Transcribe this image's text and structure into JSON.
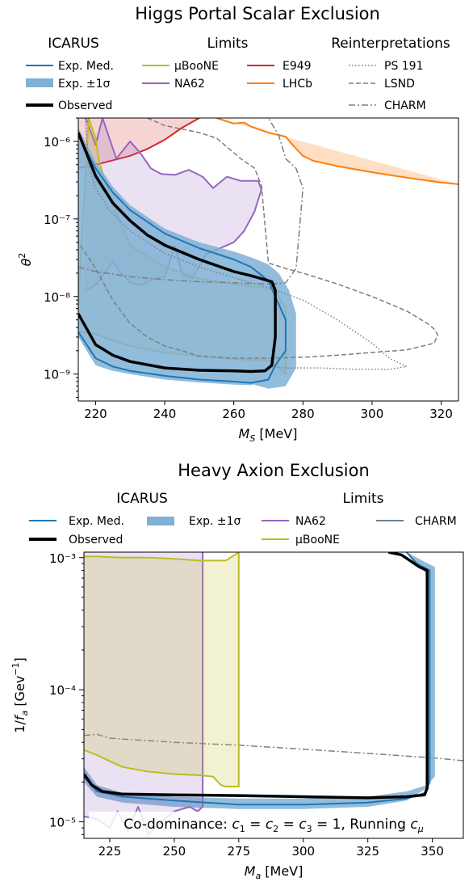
{
  "colors": {
    "icarus_median": "#1f77b4",
    "icarus_band": "#7fb0d6",
    "observed": "#000000",
    "microboone": "#bcbd22",
    "na62": "#9467bd",
    "e949": "#d62728",
    "lhcb": "#ff7f0e",
    "reinterpretation": "#7f7f7f",
    "charm_axion": "#708090"
  },
  "chart_data": [
    {
      "type": "line",
      "title": "Higgs Portal Scalar Exclusion",
      "xlabel": "M_S [MeV]",
      "ylabel": "θ²",
      "xlim": [
        215,
        325
      ],
      "ylim": [
        4.5e-10,
        2e-06
      ],
      "yscale": "log",
      "grid": false,
      "legend_placement": "top (above axes)",
      "legend_groups": [
        {
          "title": "ICARUS",
          "entries": [
            "Exp. Med.",
            "Exp. ±1σ",
            "Observed"
          ]
        },
        {
          "title": "Limits",
          "entries": [
            "μBooNE",
            "NA62",
            "E949",
            "LHCb"
          ]
        },
        {
          "title": "Reinterpretations",
          "entries": [
            "PS 191",
            "LSND",
            "CHARM"
          ]
        }
      ],
      "xticks": [
        "220",
        "240",
        "260",
        "280",
        "300",
        "320"
      ],
      "yticks": [
        "10⁻⁹",
        "10⁻⁸",
        "10⁻⁷",
        "10⁻⁶"
      ],
      "series": [
        {
          "name": "Exp. Med.",
          "style": "line",
          "x": [
            215,
            220,
            225,
            230,
            240,
            250,
            260,
            265,
            270,
            272,
            275,
            275,
            272,
            270,
            265,
            260,
            250,
            240,
            230,
            225,
            220,
            215
          ],
          "y": [
            3.5e-09,
            1.6e-09,
            1.25e-09,
            1.1e-09,
            9.5e-10,
            8.5e-10,
            8e-10,
            7.7e-10,
            8.5e-10,
            1.3e-09,
            2e-09,
            5e-09,
            1e-08,
            1.6e-08,
            2.4e-08,
            3e-08,
            4.2e-08,
            6.5e-08,
            1.3e-07,
            2.2e-07,
            4.5e-07,
            1.2e-06
          ]
        },
        {
          "name": "Exp. ±1σ",
          "style": "band",
          "x": [
            215,
            220,
            225,
            230,
            240,
            250,
            260,
            265,
            270,
            275,
            278,
            278,
            276,
            273,
            270,
            265,
            260,
            250,
            240,
            230,
            225,
            220,
            215,
            215,
            220,
            225,
            230,
            240,
            250,
            260,
            265,
            268,
            272,
            270,
            265,
            260,
            250,
            240,
            230,
            225,
            220,
            215
          ],
          "y": [
            4.5e-09,
            1.9e-09,
            1.4e-09,
            1.2e-09,
            1e-09,
            9e-10,
            8e-10,
            7.5e-10,
            6.5e-10,
            7e-10,
            1.2e-09,
            6e-09,
            1.2e-08,
            2e-08,
            2.6e-08,
            3.2e-08,
            3.8e-08,
            5e-08,
            7.5e-08,
            1.5e-07,
            2.6e-07,
            5.5e-07,
            1.5e-06,
            3e-09,
            1.3e-09,
            1.1e-09,
            1e-09,
            8.5e-10,
            7.8e-10,
            7.3e-10,
            7.2e-10,
            8e-10,
            2e-09,
            1.4e-08,
            2e-08,
            2.5e-08,
            3.5e-08,
            5.5e-08,
            1.1e-07,
            1.8e-07,
            3.6e-07,
            9e-07
          ]
        },
        {
          "name": "Observed",
          "style": "thick-line",
          "x": [
            215,
            220,
            225,
            230,
            240,
            250,
            260,
            265,
            269,
            271,
            272,
            272,
            271,
            268,
            265,
            260,
            250,
            240,
            235,
            230,
            225,
            220,
            215
          ],
          "y": [
            6e-09,
            2.4e-09,
            1.75e-09,
            1.45e-09,
            1.2e-09,
            1.12e-09,
            1.1e-09,
            1.08e-09,
            1.1e-09,
            1.3e-09,
            3e-09,
            1.2e-08,
            1.55e-08,
            1.7e-08,
            1.85e-08,
            2.1e-08,
            3e-08,
            4.6e-08,
            6.2e-08,
            9.5e-08,
            1.6e-07,
            3.6e-07,
            1.3e-06
          ]
        },
        {
          "name": "μBooNE",
          "style": "filled-outline",
          "x": [
            215,
            220,
            225,
            230,
            240,
            250,
            260,
            270,
            273,
            275,
            275,
            272,
            268,
            260,
            250,
            240,
            230,
            225,
            221,
            220,
            218,
            215
          ],
          "y": [
            3.5e-09,
            3.3e-09,
            2.7e-09,
            2.3e-09,
            1.9e-09,
            1.7e-09,
            1.55e-09,
            1.5e-09,
            1.2e-09,
            1e-09,
            7e-09,
            1.2e-08,
            1.3e-08,
            1.45e-08,
            1.7e-08,
            2.4e-08,
            4.5e-08,
            1.5e-07,
            5.5e-07,
            1.1e-06,
            2e-06,
            8e-09
          ]
        },
        {
          "name": "NA62",
          "style": "filled-outline",
          "x": [
            217,
            220,
            225,
            227,
            230,
            233,
            237,
            240,
            243,
            245,
            248,
            252,
            255,
            260,
            263,
            266,
            268,
            267,
            262,
            258,
            254,
            251,
            247,
            243,
            239,
            236,
            233,
            230,
            226,
            222,
            220,
            217
          ],
          "y": [
            1.2e-08,
            1.4e-08,
            2.8e-08,
            2.1e-08,
            1.5e-08,
            1.4e-08,
            1.7e-08,
            1.8e-08,
            4.5e-08,
            1.9e-08,
            1.7e-08,
            3.5e-08,
            4e-08,
            5e-08,
            7e-08,
            1.25e-07,
            2.4e-07,
            3.1e-07,
            3.1e-07,
            3.5e-07,
            2.5e-07,
            3.5e-07,
            4.3e-07,
            3.7e-07,
            3.8e-07,
            4.5e-07,
            7e-07,
            1e-06,
            6e-07,
            2e-06,
            9e-07,
            2.1e-06
          ]
        },
        {
          "name": "E949",
          "style": "filled-outline",
          "x": [
            215,
            220,
            225,
            230,
            235,
            240,
            245,
            250
          ],
          "y": [
            4.5e-07,
            5e-07,
            5.7e-07,
            6.5e-07,
            8e-07,
            1.05e-06,
            1.5e-06,
            2e-06
          ]
        },
        {
          "name": "LHCb",
          "style": "filled-outline",
          "x": [
            255,
            260,
            263,
            265,
            270,
            275,
            277,
            280,
            283,
            290,
            300,
            310,
            320,
            325
          ],
          "y": [
            2e-06,
            1.7e-06,
            1.75e-06,
            1.55e-06,
            1.3e-06,
            1.15e-06,
            9e-07,
            6.5e-07,
            5.6e-07,
            4.8e-07,
            4e-07,
            3.4e-07,
            2.95e-07,
            2.8e-07
          ]
        },
        {
          "name": "PS 191",
          "style": "dotted",
          "x": [
            217,
            218,
            220,
            224,
            230,
            240,
            250,
            260,
            270,
            280,
            290,
            300,
            305,
            310,
            305,
            295,
            285,
            275,
            270
          ],
          "y": [
            2e-06,
            5e-07,
            2.5e-07,
            1.3e-07,
            7e-08,
            3.6e-08,
            2.4e-08,
            1.75e-08,
            1.3e-08,
            9e-09,
            5e-09,
            2.5e-09,
            1.6e-09,
            1.25e-09,
            1.15e-09,
            1.15e-09,
            1.2e-09,
            1.2e-09,
            1.25e-09
          ]
        },
        {
          "name": "LSND",
          "style": "dashed",
          "x": [
            235,
            240,
            250,
            255,
            262,
            266,
            268,
            270,
            275,
            280,
            290,
            300,
            310,
            316,
            318,
            319,
            318,
            310,
            300,
            290,
            280,
            270,
            260,
            250,
            245,
            240,
            235,
            230,
            225,
            220,
            215
          ],
          "y": [
            2e-06,
            1.6e-06,
            1.3e-06,
            1.1e-06,
            6e-07,
            4.5e-07,
            2.7e-07,
            2.7e-08,
            2.3e-08,
            2e-08,
            1.45e-08,
            1e-08,
            6.5e-09,
            4.5e-09,
            3.8e-09,
            3.2e-09,
            2.5e-09,
            2.05e-09,
            1.9e-09,
            1.75e-09,
            1.65e-09,
            1.6e-09,
            1.6e-09,
            1.7e-09,
            2e-09,
            2.3e-09,
            3e-09,
            4.5e-09,
            9e-09,
            2.3e-08,
            5e-08
          ]
        },
        {
          "name": "CHARM",
          "style": "dashdot",
          "x": [
            215,
            220,
            230,
            240,
            250,
            260,
            270,
            275,
            278,
            280,
            278,
            275,
            273,
            270
          ],
          "y": [
            2.4e-08,
            2.1e-08,
            1.8e-08,
            1.65e-08,
            1.55e-08,
            1.5e-08,
            1.45e-08,
            1.5e-08,
            2.3e-08,
            2.5e-07,
            4.5e-07,
            6e-07,
            1.2e-06,
            2e-06
          ]
        }
      ]
    },
    {
      "type": "line",
      "title": "Heavy Axion Exclusion",
      "xlabel": "M_a [MeV]",
      "ylabel": "1/f_a [Gev⁻¹]",
      "xlim": [
        215,
        362
      ],
      "ylim": [
        7.5e-06,
        0.0011
      ],
      "yscale": "log",
      "grid": false,
      "legend_placement": "top (above axes)",
      "legend_groups": [
        {
          "title": "ICARUS",
          "entries": [
            "Exp. Med.",
            "Exp. ±1σ",
            "Observed"
          ]
        },
        {
          "title": "Limits",
          "entries": [
            "NA62",
            "CHARM",
            "μBooNE"
          ]
        }
      ],
      "annotation": "Co-dominance: c₁ = c₂ = c₃ = 1, Running c_μ",
      "xticks": [
        "225",
        "250",
        "275",
        "300",
        "325",
        "350"
      ],
      "yticks": [
        "10⁻⁵",
        "10⁻⁴",
        "10⁻³"
      ],
      "series": [
        {
          "name": "Exp. Med.",
          "style": "line",
          "x": [
            215,
            220,
            230,
            250,
            275,
            300,
            325,
            340,
            347,
            349,
            349,
            344,
            340
          ],
          "y": [
            2.2e-05,
            1.7e-05,
            1.55e-05,
            1.45e-05,
            1.35e-05,
            1.35e-05,
            1.4e-05,
            1.5e-05,
            1.65e-05,
            2e-05,
            0.0008,
            0.0009,
            0.0011
          ]
        },
        {
          "name": "Exp. ±1σ",
          "style": "band",
          "x": [
            215,
            220,
            230,
            250,
            275,
            300,
            325,
            340,
            348,
            351,
            351,
            346,
            340,
            340,
            345,
            348,
            348,
            340,
            325,
            300,
            275,
            250,
            230,
            220,
            215
          ],
          "y": [
            2.6e-05,
            1.9e-05,
            1.65e-05,
            1.55e-05,
            1.5e-05,
            1.5e-05,
            1.55e-05,
            1.7e-05,
            1.9e-05,
            2.2e-05,
            0.00085,
            0.00095,
            0.0011,
            0.0011,
            0.00085,
            0.00075,
            1.8e-05,
            1.45e-05,
            1.3e-05,
            1.25e-05,
            1.25e-05,
            1.3e-05,
            1.4e-05,
            1.55e-05,
            2e-05
          ]
        },
        {
          "name": "Observed",
          "style": "thick-line",
          "x": [
            215,
            218,
            222,
            230,
            250,
            275,
            300,
            325,
            340,
            347,
            348,
            348,
            345,
            338,
            333
          ],
          "y": [
            2.3e-05,
            1.9e-05,
            1.7e-05,
            1.62e-05,
            1.6e-05,
            1.58e-05,
            1.55e-05,
            1.52e-05,
            1.55e-05,
            1.6e-05,
            1.8e-05,
            0.0008,
            0.00085,
            0.00105,
            0.0011
          ]
        },
        {
          "name": "NA62",
          "style": "filled-outline",
          "x": [
            215,
            220,
            225,
            228,
            232,
            236,
            240,
            245,
            250,
            256,
            259,
            261,
            261
          ],
          "y": [
            1.1e-05,
            1.05e-05,
            9e-06,
            1.2e-05,
            8.5e-06,
            1.3e-05,
            8e-06,
            1e-05,
            1.2e-05,
            1.3e-05,
            1.2e-05,
            1.3e-05,
            0.0011
          ]
        },
        {
          "name": "μBooNE",
          "style": "filled-outline",
          "x": [
            215,
            220,
            230,
            240,
            250,
            260,
            265,
            268,
            270,
            275,
            275,
            270,
            265,
            260,
            250,
            240,
            230,
            220,
            215
          ],
          "y": [
            3.5e-05,
            3.2e-05,
            2.6e-05,
            2.4e-05,
            2.3e-05,
            2.25e-05,
            2.2e-05,
            1.9e-05,
            1.85e-05,
            1.85e-05,
            0.0011,
            0.00095,
            0.00095,
            0.00095,
            0.00098,
            0.001,
            0.001,
            0.00102,
            0.00102
          ]
        },
        {
          "name": "CHARM",
          "style": "filled-outline",
          "x": [
            215,
            220,
            225,
            250,
            275,
            300,
            325,
            350,
            362
          ],
          "y": [
            4.5e-05,
            4.6e-05,
            4.3e-05,
            4e-05,
            3.8e-05,
            3.55e-05,
            3.3e-05,
            3.05e-05,
            2.9e-05
          ]
        }
      ]
    }
  ]
}
